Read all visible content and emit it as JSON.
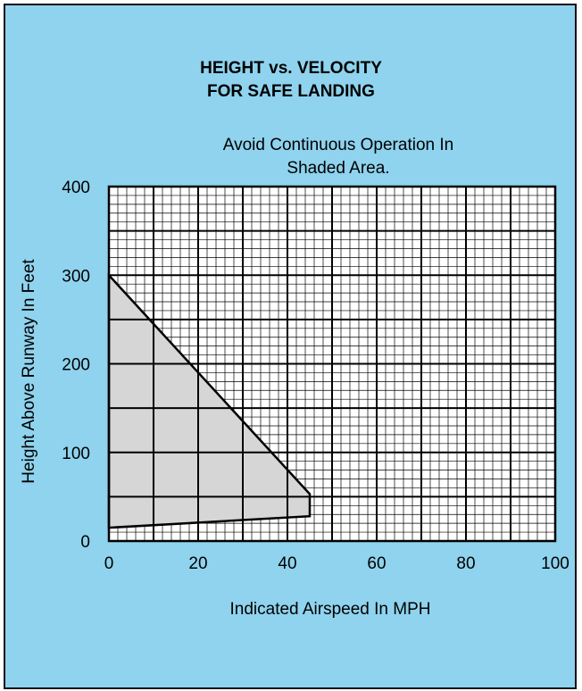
{
  "colors": {
    "background": "#8fd3ee",
    "plot_background": "#ffffff",
    "grid": "#000000",
    "shaded_region": "#d6d6d6",
    "border": "#111111"
  },
  "chart": {
    "title_lines": [
      "HEIGHT vs. VELOCITY",
      "FOR SAFE LANDING"
    ],
    "note_lines": [
      "Avoid Continuous Operation In",
      "Shaded Area."
    ]
  },
  "chart_data": {
    "type": "area",
    "title": "HEIGHT vs. VELOCITY FOR SAFE LANDING",
    "subtitle": "Avoid Continuous Operation In Shaded Area.",
    "xlabel": "Indicated Airspeed In MPH",
    "ylabel": "Height Above Runway In Feet",
    "xlim": [
      0,
      100
    ],
    "ylim": [
      0,
      400
    ],
    "x_ticks": [
      0,
      20,
      40,
      60,
      80,
      100
    ],
    "x_tick_labels": [
      "0",
      "20",
      "40",
      "60",
      "80",
      "100"
    ],
    "y_ticks": [
      0,
      100,
      200,
      300,
      400
    ],
    "y_tick_labels": [
      "0",
      "100",
      "200",
      "300",
      "400"
    ],
    "grid": true,
    "grid_major_step": {
      "x": 10,
      "y": 50
    },
    "grid_minor_step": {
      "x": 2,
      "y": 10
    },
    "legend": "none",
    "shaded_region": {
      "name": "",
      "boundary": [
        {
          "x": 0,
          "y": 300
        },
        {
          "x": 45,
          "y": 53
        },
        {
          "x": 45,
          "y": 28
        },
        {
          "x": 0,
          "y": 15
        }
      ]
    }
  }
}
